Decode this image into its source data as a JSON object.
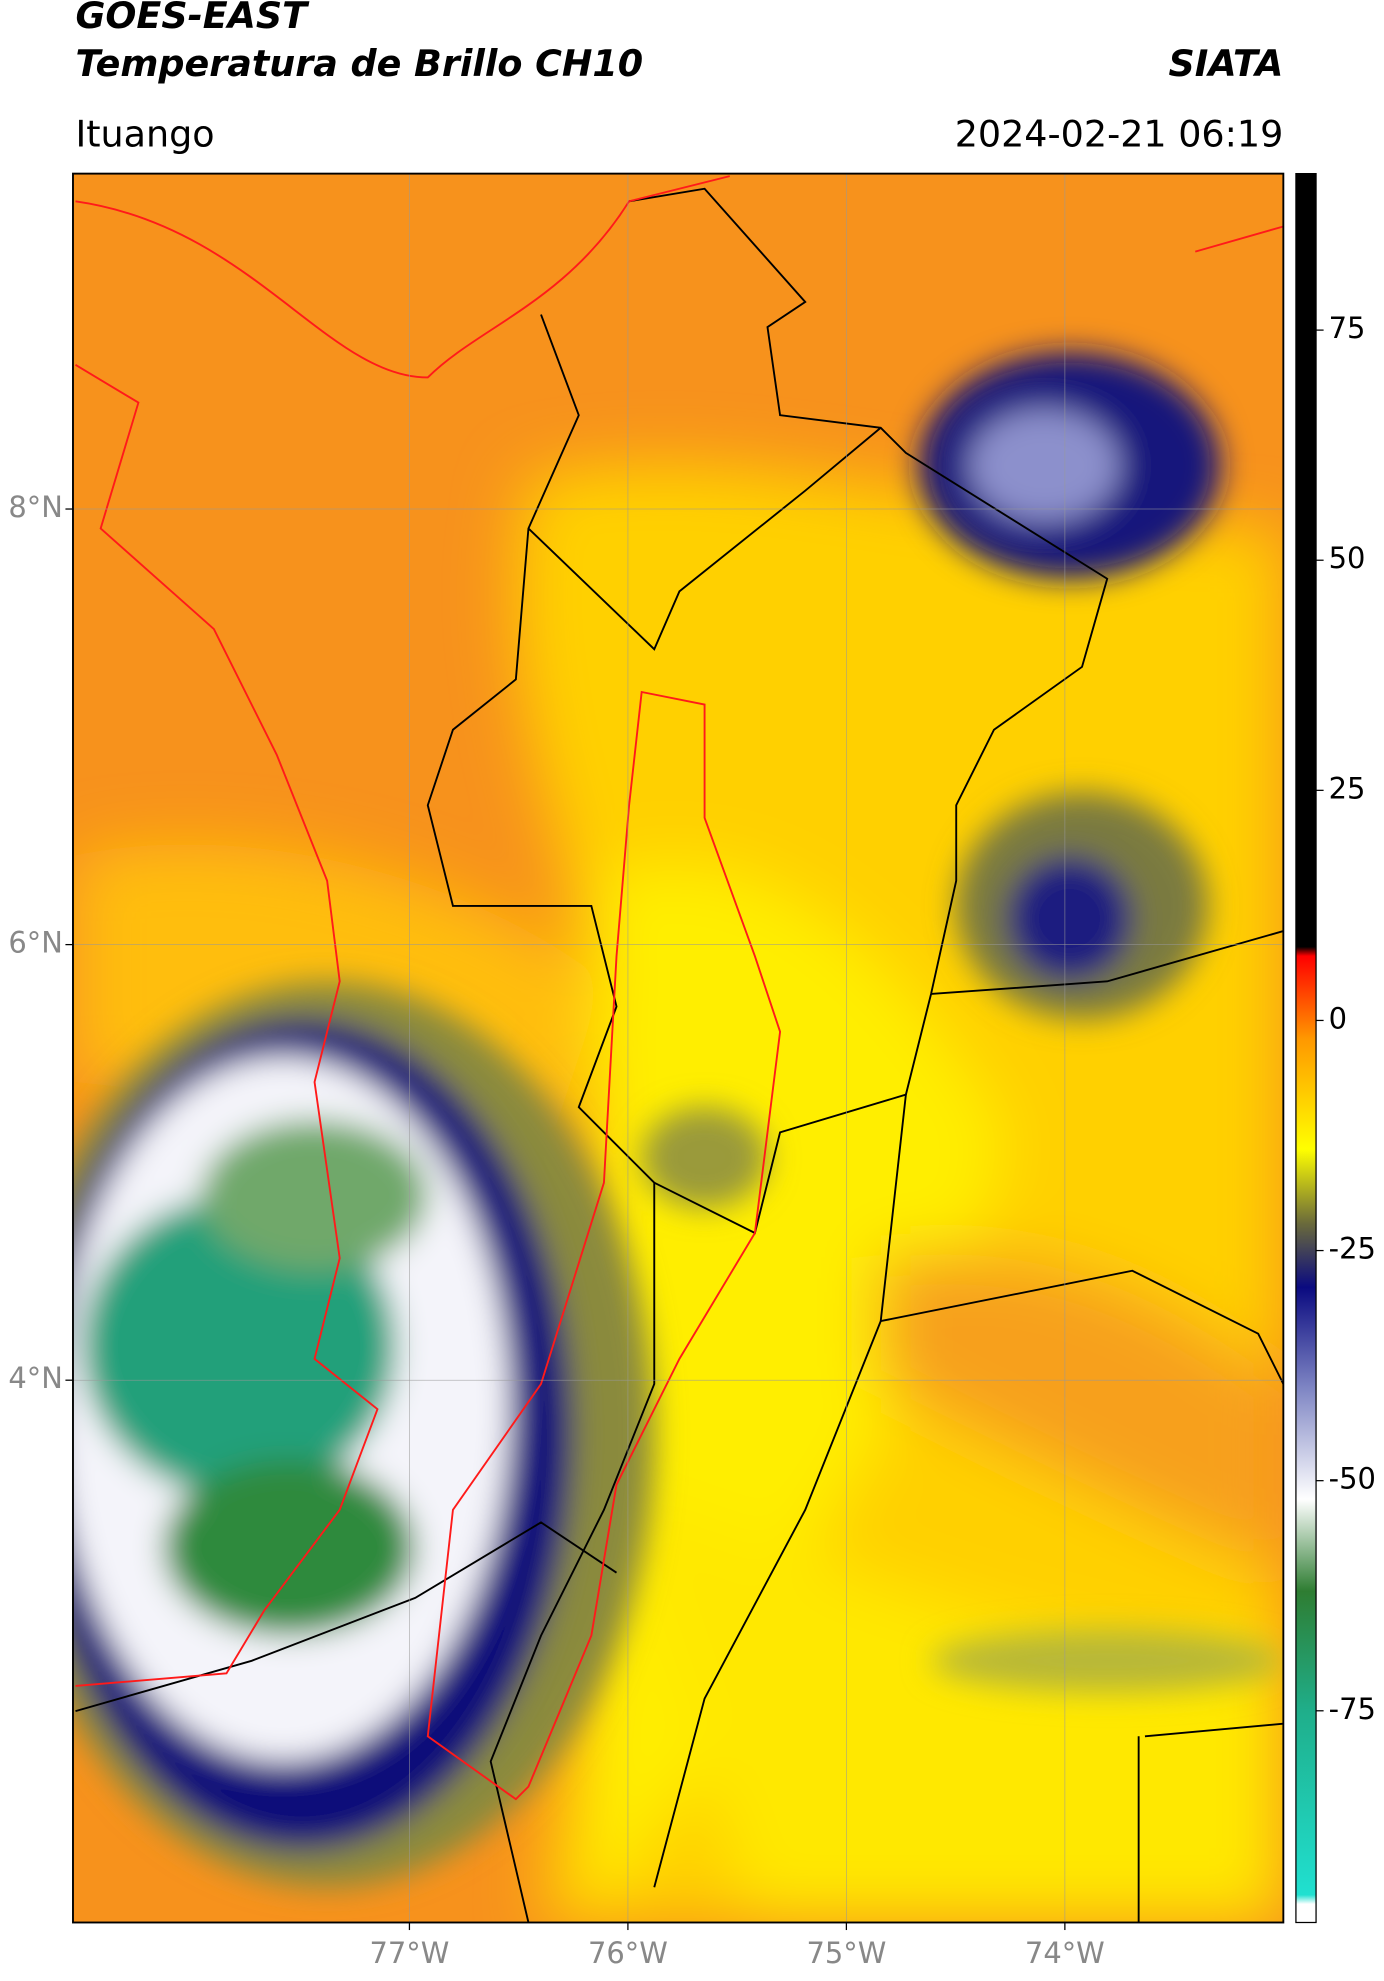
{
  "header": {
    "title_line1": "GOES-EAST",
    "title_line2": "Temperatura de Brillo CH10",
    "source": "SIATA",
    "location": "Ituango",
    "datetime": "2024-02-21 06:19"
  },
  "map": {
    "xlim": [
      -78.54,
      -73.0
    ],
    "ylim": [
      1.51,
      9.54
    ],
    "xticks": [
      {
        "value": -77,
        "label": "77°W"
      },
      {
        "value": -76,
        "label": "76°W"
      },
      {
        "value": -75,
        "label": "75°W"
      },
      {
        "value": -74,
        "label": "74°W"
      }
    ],
    "yticks": [
      {
        "value": 4,
        "label": "4°N"
      },
      {
        "value": 6,
        "label": "6°N"
      },
      {
        "value": 8,
        "label": "8°N"
      }
    ],
    "grid": true
  },
  "colorbar": {
    "clim": [
      -98,
      92
    ],
    "ticks": [
      -75,
      -50,
      -25,
      0,
      25,
      50,
      75
    ],
    "colormap": [
      [
        -98,
        "#ffffff"
      ],
      [
        -96,
        "#ffffff"
      ],
      [
        -95,
        "#20e0d0"
      ],
      [
        -75,
        "#1fae8a"
      ],
      [
        -62,
        "#2e7d32"
      ],
      [
        -52,
        "#ffffff"
      ],
      [
        -40,
        "#7f86c4"
      ],
      [
        -29,
        "#0a0a80"
      ],
      [
        -22,
        "#6b6b3a"
      ],
      [
        -14,
        "#ffff00"
      ],
      [
        -2,
        "#ff9800"
      ],
      [
        7,
        "#ff0000"
      ],
      [
        8,
        "#000000"
      ],
      [
        92,
        "#000000"
      ]
    ]
  }
}
